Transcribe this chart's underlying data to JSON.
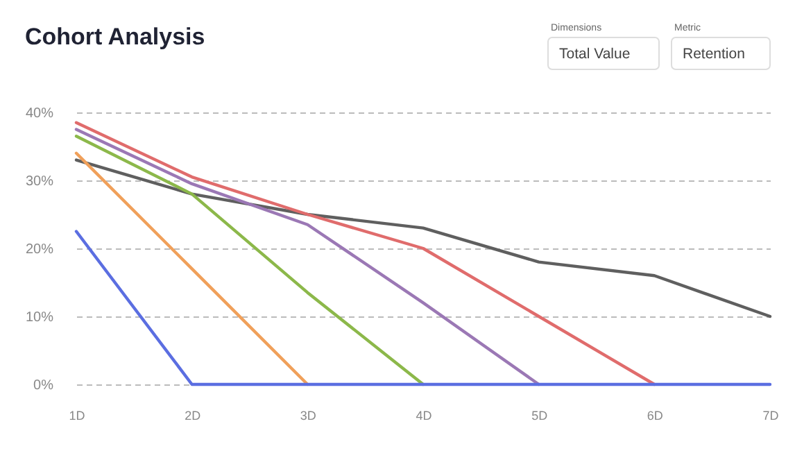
{
  "chart_data": {
    "type": "line",
    "title": "Cohort Analysis",
    "annotations": [
      "Dimensions",
      "Total Value",
      "Metric",
      "Retention"
    ],
    "categories": [
      "1D",
      "2D",
      "3D",
      "4D",
      "5D",
      "6D",
      "7D"
    ],
    "series": [
      {
        "color": "#5f5f5f",
        "values": [
          33,
          28,
          25,
          23,
          18,
          16,
          10
        ]
      },
      {
        "color": "#e06c6c",
        "values": [
          38.5,
          30.5,
          25,
          20,
          10,
          0,
          null
        ]
      },
      {
        "color": "#9b78b5",
        "values": [
          37.5,
          29.5,
          23.5,
          12,
          0,
          null,
          null
        ]
      },
      {
        "color": "#8cb84a",
        "values": [
          36.5,
          28,
          13.5,
          0,
          null,
          null,
          null
        ]
      },
      {
        "color": "#f0a05a",
        "values": [
          34,
          17,
          0,
          null,
          null,
          null,
          null
        ]
      },
      {
        "color": "#5b6ee1",
        "values": [
          22.5,
          0,
          0,
          0,
          0,
          0,
          0
        ]
      }
    ],
    "ylim": [
      0,
      40
    ],
    "yticks": [
      {
        "value": 0,
        "label": "0%"
      },
      {
        "value": 10,
        "label": "10%"
      },
      {
        "value": 20,
        "label": "20%"
      },
      {
        "value": 30,
        "label": "30%"
      },
      {
        "value": 40,
        "label": "40%"
      }
    ],
    "grid": "y",
    "legend": false,
    "marker": "none",
    "line_style": "solid"
  }
}
